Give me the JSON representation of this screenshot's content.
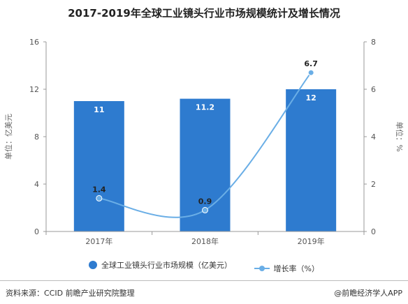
{
  "chart_data": {
    "type": "bar",
    "title": "2017-2019年全球工业镜头行业市场规模统计及增长情况",
    "categories": [
      "2017年",
      "2018年",
      "2019年"
    ],
    "series": [
      {
        "name": "全球工业镜头行业市场规模（亿美元）",
        "type": "bar",
        "axis": "left",
        "values": [
          11,
          11.2,
          12
        ],
        "labels": [
          "11",
          "11.2",
          "12"
        ],
        "color": "#2e7bcf"
      },
      {
        "name": "增长率（%）",
        "type": "line",
        "axis": "right",
        "values": [
          1.4,
          0.9,
          6.7
        ],
        "labels": [
          "1.4",
          "0.9",
          "6.7"
        ],
        "color": "#6aaee6"
      }
    ],
    "ylabel": "单位：亿美元",
    "y2label": "单位：%",
    "ylim": [
      0,
      16
    ],
    "yticks": [
      "0",
      "4",
      "8",
      "12",
      "16"
    ],
    "y2lim": [
      0,
      8
    ],
    "y2ticks": [
      "0",
      "2",
      "4",
      "6",
      "8"
    ],
    "grid": false,
    "legend": "bottom"
  },
  "footer": {
    "source": "资料来源：CCID 前瞻产业研究院整理",
    "credit": "@前瞻经济学人APP"
  }
}
